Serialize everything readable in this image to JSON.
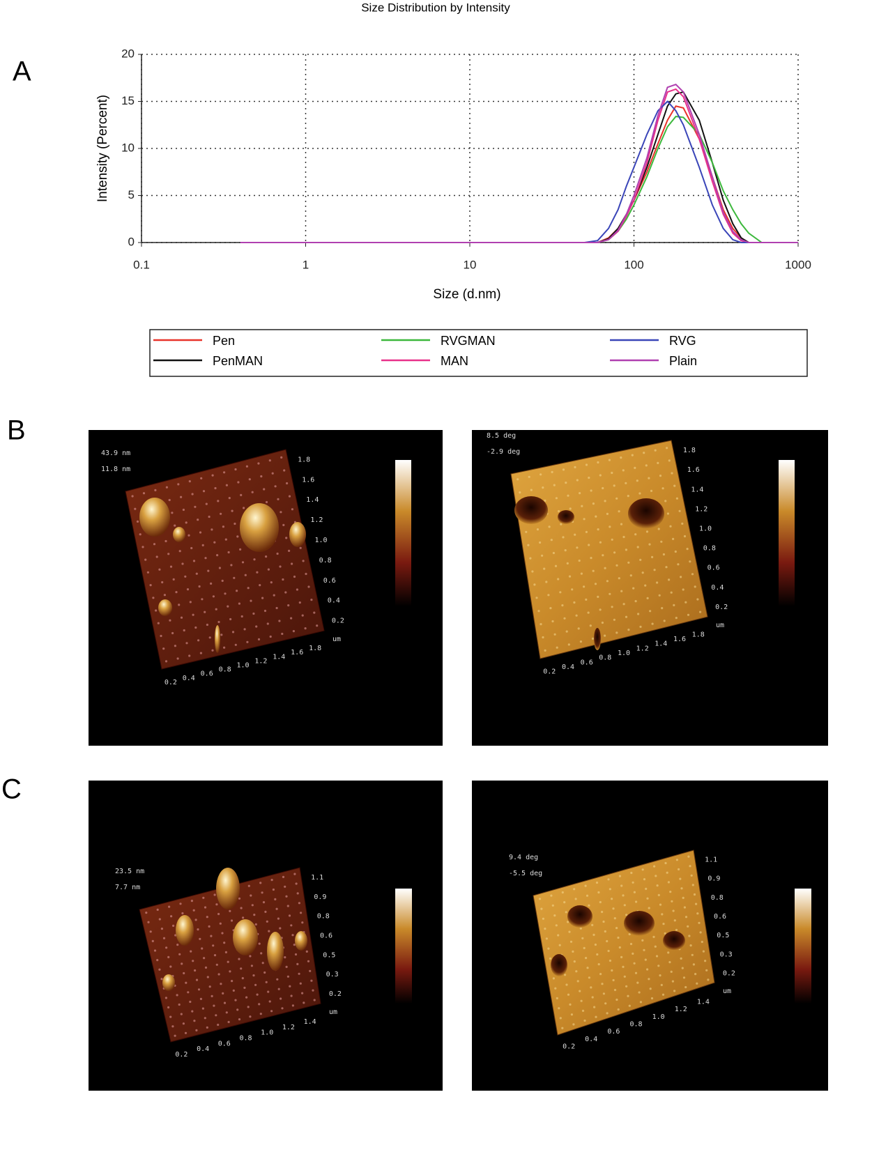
{
  "panels": [
    "A",
    "B",
    "C"
  ],
  "chart_data": {
    "type": "line",
    "title": "Size Distribution by Intensity",
    "x_label": "Size (d.nm)",
    "y_label": "Intensity (Percent)",
    "x_scale": "log",
    "grid": true,
    "legend_position": "bottom",
    "xlim": [
      0.1,
      1000
    ],
    "xticks": [
      0.1,
      1,
      10,
      100,
      1000
    ],
    "ylim": [
      0,
      20
    ],
    "yticks": [
      0,
      5,
      10,
      15,
      20
    ],
    "x": [
      0.4,
      1,
      10,
      50,
      60,
      70,
      80,
      90,
      100,
      120,
      140,
      160,
      180,
      200,
      250,
      300,
      350,
      400,
      450,
      500,
      600,
      700,
      1000
    ],
    "series": [
      {
        "name": "Pen",
        "color": "#e8332a",
        "values": [
          0,
          0,
          0,
          0,
          0,
          0.5,
          1.5,
          3,
          4.5,
          7.5,
          10.5,
          13,
          14.5,
          14.3,
          11,
          7,
          3.5,
          1.5,
          0.5,
          0,
          0,
          0,
          0
        ]
      },
      {
        "name": "PenMAN",
        "color": "#111111",
        "values": [
          0,
          0,
          0,
          0,
          0,
          0.4,
          1.5,
          3,
          4.5,
          8,
          11.5,
          14.5,
          15.8,
          16,
          13,
          8.5,
          4.5,
          2,
          0.5,
          0,
          0,
          0,
          0
        ]
      },
      {
        "name": "RVGMAN",
        "color": "#3cb83c",
        "values": [
          0,
          0,
          0,
          0,
          0,
          0.3,
          1.2,
          2.5,
          4,
          7,
          10,
          12.3,
          13.4,
          13.3,
          11.5,
          8.5,
          5.5,
          3.5,
          2,
          1,
          0,
          0,
          0
        ]
      },
      {
        "name": "MAN",
        "color": "#e8318a",
        "values": [
          0,
          0,
          0,
          0,
          0,
          0.3,
          1.2,
          2.8,
          4.5,
          8.5,
          13,
          16,
          16.3,
          15.5,
          11,
          6.5,
          3,
          1,
          0.2,
          0,
          0,
          0,
          0
        ]
      },
      {
        "name": "RVG",
        "color": "#3a45b8",
        "values": [
          0,
          0,
          0,
          0,
          0.2,
          1.5,
          3.5,
          6,
          8,
          11.5,
          14,
          15,
          14,
          12.5,
          8,
          4,
          1.5,
          0.3,
          0,
          0,
          0,
          0,
          0
        ]
      },
      {
        "name": "Plain",
        "color": "#b040b0",
        "values": [
          0,
          0,
          0,
          0,
          0,
          0.3,
          1.3,
          3,
          5,
          9,
          13.5,
          16.5,
          16.8,
          16,
          11.5,
          7,
          3.2,
          1.2,
          0.3,
          0,
          0,
          0,
          0
        ]
      }
    ]
  },
  "afm_images": [
    {
      "top_label": "43.9 nm",
      "bottom_label": "11.8 nm",
      "unit": "um",
      "x_ticks": [
        "0.2",
        "0.4",
        "0.6",
        "0.8",
        "1.0",
        "1.2",
        "1.4",
        "1.6",
        "1.8"
      ],
      "y_ticks": [
        "0.2",
        "0.4",
        "0.6",
        "0.8",
        "1.0",
        "1.2",
        "1.4",
        "1.6",
        "1.8"
      ]
    },
    {
      "top_label": "8.5 deg",
      "bottom_label": "-2.9 deg",
      "unit": "um",
      "x_ticks": [
        "0.2",
        "0.4",
        "0.6",
        "0.8",
        "1.0",
        "1.2",
        "1.4",
        "1.6",
        "1.8"
      ],
      "y_ticks": [
        "0.2",
        "0.4",
        "0.6",
        "0.8",
        "1.0",
        "1.2",
        "1.4",
        "1.6",
        "1.8"
      ]
    },
    {
      "top_label": "23.5 nm",
      "bottom_label": "7.7 nm",
      "unit": "um",
      "x_ticks": [
        "0.2",
        "0.4",
        "0.6",
        "0.8",
        "1.0",
        "1.2",
        "1.4"
      ],
      "y_ticks": [
        "0.2",
        "0.3",
        "0.5",
        "0.6",
        "0.8",
        "0.9",
        "1.1"
      ]
    },
    {
      "top_label": "9.4 deg",
      "bottom_label": "-5.5 deg",
      "unit": "um",
      "x_ticks": [
        "0.2",
        "0.4",
        "0.6",
        "0.8",
        "1.0",
        "1.2",
        "1.4"
      ],
      "y_ticks": [
        "0.2",
        "0.3",
        "0.5",
        "0.6",
        "0.8",
        "0.9",
        "1.1"
      ]
    }
  ]
}
